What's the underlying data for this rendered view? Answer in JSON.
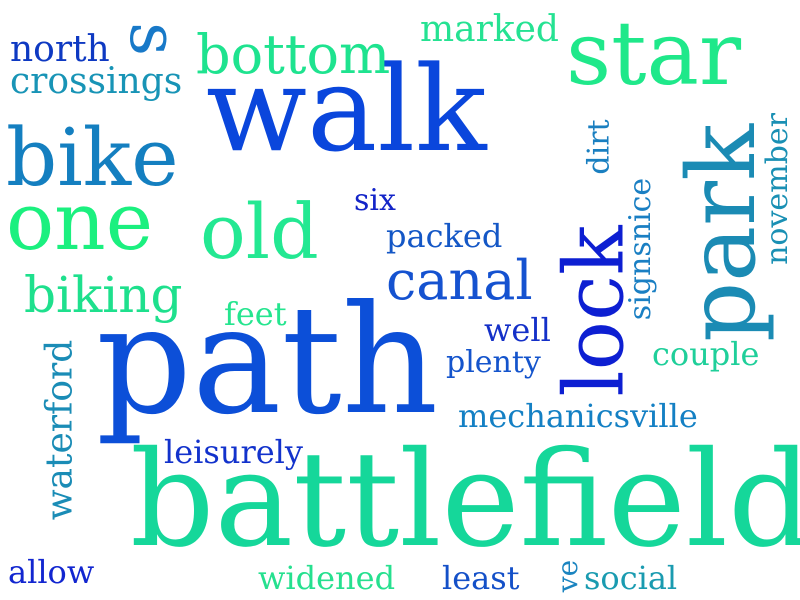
{
  "words": {
    "walk": "walk",
    "path": "path",
    "battlefield": "battlefield",
    "star": "star",
    "bike": "bike",
    "one": "one",
    "old": "old",
    "park": "park",
    "lock": "lock",
    "canal": "canal",
    "bottom": "bottom",
    "biking": "biking",
    "north": "north",
    "crossings": "crossings",
    "s": "s",
    "marked": "marked",
    "dirt": "dirt",
    "november": "november",
    "signsnice": "signsnice",
    "six": "six",
    "packed": "packed",
    "feet": "feet",
    "well": "well",
    "plenty": "plenty",
    "couple": "couple",
    "mechanicsville": "mechanicsville",
    "leisurely": "leisurely",
    "waterford": "waterford",
    "allow": "allow",
    "widened": "widened",
    "least": "least",
    "ve": "ve",
    "social": "social"
  },
  "colors": {
    "blue": "#1440d6",
    "royal": "#0a52d8",
    "teal": "#1a8db0",
    "teal_green": "#19a7a0",
    "green": "#17d48f",
    "bright_green": "#1af083",
    "deep_blue": "#1325cf"
  }
}
